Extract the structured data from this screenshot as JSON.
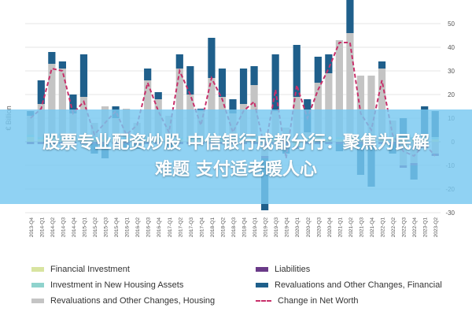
{
  "chart_data": {
    "type": "bar",
    "ylabel": "€ Billion",
    "ylim": [
      -30,
      50
    ],
    "yticks": [
      50,
      40,
      30,
      20,
      10,
      0,
      -10,
      -20,
      -30
    ],
    "grid": true,
    "legend_placement": "bottom",
    "categories": [
      "2013-Q4",
      "2014-Q1",
      "2014-Q2",
      "2014-Q3",
      "2014-Q4",
      "2015-Q1",
      "2015-Q2",
      "2015-Q3",
      "2015-Q4",
      "2016-Q1",
      "2016-Q2",
      "2016-Q3",
      "2016-Q4",
      "2017-Q1",
      "2017-Q2",
      "2017-Q3",
      "2017-Q4",
      "2018-Q1",
      "2018-Q2",
      "2018-Q3",
      "2018-Q4",
      "2019-Q1",
      "2019-Q2",
      "2019-Q3",
      "2019-Q4",
      "2020-Q1",
      "2020-Q2",
      "2020-Q3",
      "2020-Q4",
      "2021-Q1",
      "2021-Q2",
      "2021-Q3",
      "2021-Q4",
      "2022-Q1",
      "2022-Q2",
      "2022-Q3",
      "2022-Q4",
      "2023-Q1",
      "2023-Q2"
    ],
    "series": [
      {
        "name": "Financial Investment",
        "kind": "bar",
        "color": "#d8e4a0",
        "values": [
          2,
          1,
          2,
          1,
          1,
          2,
          1,
          1,
          1,
          1,
          1,
          1,
          1,
          1,
          1,
          1,
          1,
          1,
          1,
          1,
          1,
          1,
          1,
          1,
          1,
          -2,
          1,
          2,
          1,
          1,
          2,
          1,
          2,
          1,
          1,
          1,
          1,
          1,
          1
        ]
      },
      {
        "name": "Investment in New Housing Assets",
        "kind": "bar",
        "color": "#8fd3cd",
        "values": [
          1,
          1,
          1,
          1,
          1,
          1,
          1,
          1,
          1,
          1,
          1,
          1,
          1,
          1,
          1,
          1,
          1,
          1,
          1,
          1,
          1,
          1,
          1,
          1,
          1,
          1,
          1,
          1,
          1,
          1,
          1,
          1,
          1,
          1,
          1,
          1,
          1,
          1,
          1
        ]
      },
      {
        "name": "Revaluations and Other Changes, Housing",
        "kind": "bar",
        "color": "#c4c4c4",
        "values": [
          8,
          14,
          30,
          29,
          10,
          16,
          6,
          13,
          8,
          12,
          6,
          24,
          16,
          9,
          29,
          18,
          11,
          25,
          17,
          10,
          14,
          22,
          -6,
          11,
          4,
          18,
          2,
          22,
          27,
          41,
          43,
          26,
          25,
          29,
          7,
          -10,
          -9,
          1,
          -5
        ]
      },
      {
        "name": "Liabilities",
        "kind": "bar",
        "color": "#6a3a88",
        "values": [
          -1,
          -1,
          -1,
          -1,
          -1,
          -1,
          -1,
          -1,
          -1,
          -1,
          -1,
          -1,
          -1,
          -1,
          -1,
          -1,
          -1,
          -1,
          -1,
          -1,
          -1,
          -1,
          -1,
          -1,
          -1,
          -1,
          -1,
          -1,
          -1,
          -1,
          -1,
          -1,
          -1,
          -1,
          -1,
          -1,
          -1,
          -1,
          -1
        ]
      },
      {
        "name": "Revaluations and Other Changes, Financial",
        "kind": "bar",
        "color": "#1f5f8b",
        "values": [
          2,
          10,
          5,
          3,
          8,
          18,
          -4,
          -6,
          5,
          -2,
          -2,
          5,
          3,
          -2,
          6,
          12,
          1,
          17,
          12,
          6,
          15,
          8,
          -22,
          24,
          -4,
          22,
          14,
          11,
          8,
          -3,
          16,
          -13,
          -18,
          3,
          -4,
          8,
          -6,
          12,
          11
        ]
      },
      {
        "name": "Change in Net Worth",
        "kind": "line",
        "color": "#c8306a",
        "values": [
          10,
          14,
          31,
          30,
          12,
          17,
          3,
          8,
          13,
          3,
          7,
          25,
          13,
          4,
          30,
          20,
          7,
          27,
          18,
          4,
          13,
          17,
          -3,
          22,
          -7,
          24,
          10,
          22,
          31,
          42,
          42,
          12,
          5,
          26,
          3,
          -4,
          -6,
          -1,
          -6
        ]
      }
    ]
  },
  "banner": {
    "line1": "股票专业配资炒股 中信银行成都分行：聚焦为民解",
    "line2": "难题 支付适老暖人心"
  }
}
